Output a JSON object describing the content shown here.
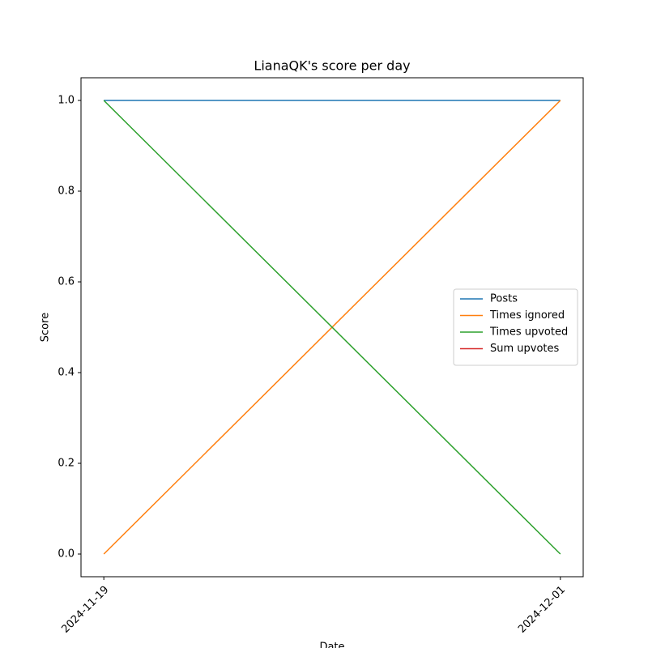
{
  "chart_data": {
    "type": "line",
    "title": "LianaQK's score per day",
    "xlabel": "Date",
    "ylabel": "Score",
    "x": [
      "2024-11-19",
      "2024-12-01"
    ],
    "series": [
      {
        "name": "Posts",
        "color": "#1f77b4",
        "values": [
          1,
          1
        ]
      },
      {
        "name": "Times ignored",
        "color": "#ff7f0e",
        "values": [
          0,
          1
        ]
      },
      {
        "name": "Times upvoted",
        "color": "#2ca02c",
        "values": [
          1,
          0
        ]
      },
      {
        "name": "Sum upvotes",
        "color": "#d62728",
        "values": [
          null,
          null
        ]
      }
    ],
    "ylim": [
      -0.05,
      1.05
    ],
    "yticks": [
      {
        "value": 0,
        "label": "0.0"
      },
      {
        "value": 0.2,
        "label": "0.2"
      },
      {
        "value": 0.4,
        "label": "0.4"
      },
      {
        "value": 0.6,
        "label": "0.6"
      },
      {
        "value": 0.8,
        "label": "0.8"
      },
      {
        "value": 1,
        "label": "1.0"
      }
    ],
    "legend": "center right"
  }
}
